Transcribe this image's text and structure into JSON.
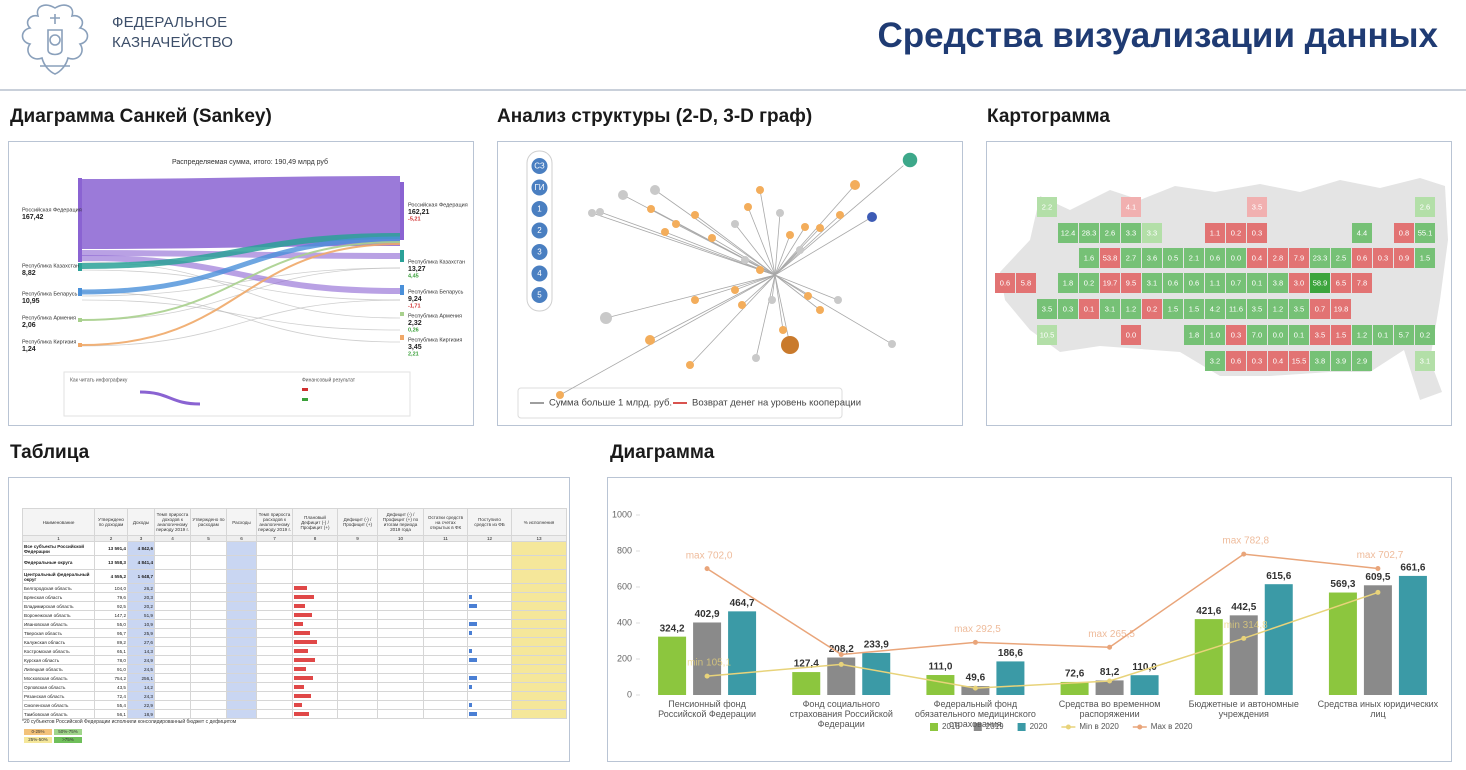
{
  "header": {
    "org_line1": "ФЕДЕРАЛЬНОЕ",
    "org_line2": "КАЗНАЧЕЙСТВО",
    "title": "Средства визуализации данных"
  },
  "sections": {
    "sankey": "Диаграмма Санкей (Sankey)",
    "graph": "Анализ структуры (2-D, 3-D граф)",
    "cartogram": "Картограмма",
    "table": "Таблица",
    "diagram": "Диаграмма"
  },
  "sankey": {
    "caption": "Распределяемая сумма, итого: 190,49 млрд руб",
    "how_to_read": "Как читать инфографику",
    "result": "Финансовый результат",
    "left": [
      {
        "name": "Российская Федерация",
        "value": "167,42"
      },
      {
        "name": "Республика Казахстан",
        "value": "8,82"
      },
      {
        "name": "Республика Беларусь",
        "value": "10,95"
      },
      {
        "name": "Республика Армения",
        "value": "2,06"
      },
      {
        "name": "Республика Киргизия",
        "value": "1,24"
      }
    ],
    "right": [
      {
        "name": "Российская Федерация",
        "value": "162,21",
        "delta": "-5,21"
      },
      {
        "name": "Республика Казахстан",
        "value": "13,27",
        "delta": "4,45"
      },
      {
        "name": "Республика Беларусь",
        "value": "9,24",
        "delta": "-1,71"
      },
      {
        "name": "Республика Армения",
        "value": "2,32",
        "delta": "0,26"
      },
      {
        "name": "Республика Киргизия",
        "value": "3,45",
        "delta": "2,21"
      }
    ]
  },
  "graph": {
    "filters": [
      "СЗ",
      "ГИ",
      "1",
      "2",
      "3",
      "4",
      "5"
    ],
    "legend": [
      {
        "name": "Сумма больше 1 млрд. руб.",
        "color": "#9e9e9e"
      },
      {
        "name": "Возврат денег на уровень кооперации",
        "color": "#d9534f"
      }
    ]
  },
  "cartogram": {
    "rows": [
      [
        null,
        null,
        [
          "2.2",
          "#b3dfa8"
        ],
        null,
        null,
        null,
        [
          "4.1",
          "#f1b0b0"
        ],
        null,
        null,
        null,
        null,
        null,
        [
          "3.5",
          "#f1b0b0"
        ],
        null,
        null,
        null,
        null,
        null,
        null,
        null,
        [
          "2.6",
          "#b3dfa8"
        ]
      ],
      [
        null,
        null,
        null,
        [
          "12.4",
          "#76c176"
        ],
        [
          "28.3",
          "#76c176"
        ],
        [
          "2.6",
          "#76c176"
        ],
        [
          "3.3",
          "#76c176"
        ],
        [
          "3.3",
          "#b3dfa8"
        ],
        null,
        null,
        [
          "1.1",
          "#e27373"
        ],
        [
          "0.2",
          "#e27373"
        ],
        [
          "0.3",
          "#e27373"
        ],
        null,
        null,
        null,
        null,
        [
          "4.4",
          "#76c176"
        ],
        null,
        [
          "0.8",
          "#e27373"
        ],
        [
          "55.1",
          "#76c176"
        ]
      ],
      [
        null,
        null,
        null,
        null,
        [
          "1.6",
          "#76c176"
        ],
        [
          "53.8",
          "#e27373"
        ],
        [
          "2.7",
          "#76c176"
        ],
        [
          "3.6",
          "#76c176"
        ],
        [
          "0.5",
          "#76c176"
        ],
        [
          "2.1",
          "#76c176"
        ],
        [
          "0.6",
          "#76c176"
        ],
        [
          "0.0",
          "#76c176"
        ],
        [
          "0.4",
          "#e27373"
        ],
        [
          "2.8",
          "#e27373"
        ],
        [
          "7.9",
          "#e27373"
        ],
        [
          "23.3",
          "#76c176"
        ],
        [
          "2.5",
          "#76c176"
        ],
        [
          "0.6",
          "#e27373"
        ],
        [
          "0.3",
          "#e27373"
        ],
        [
          "0.9",
          "#e27373"
        ],
        [
          "1.5",
          "#76c176"
        ]
      ],
      [
        [
          "0.6",
          "#e27373"
        ],
        [
          "5.8",
          "#e27373"
        ],
        null,
        [
          "1.8",
          "#76c176"
        ],
        [
          "0.2",
          "#76c176"
        ],
        [
          "19.7",
          "#e27373"
        ],
        [
          "9.5",
          "#e27373"
        ],
        [
          "3.1",
          "#76c176"
        ],
        [
          "0.6",
          "#76c176"
        ],
        [
          "0.6",
          "#76c176"
        ],
        [
          "1.1",
          "#76c176"
        ],
        [
          "0.7",
          "#76c176"
        ],
        [
          "0.1",
          "#76c176"
        ],
        [
          "3.8",
          "#76c176"
        ],
        [
          "3.0",
          "#e27373"
        ],
        [
          "58.9",
          "#3da53d"
        ],
        [
          "6.5",
          "#e27373"
        ],
        [
          "7.8",
          "#e27373"
        ],
        null,
        null,
        null
      ],
      [
        null,
        null,
        [
          "3.5",
          "#76c176"
        ],
        [
          "0.3",
          "#76c176"
        ],
        [
          "0.1",
          "#e27373"
        ],
        [
          "3.1",
          "#76c176"
        ],
        [
          "1.2",
          "#76c176"
        ],
        [
          "0.2",
          "#e27373"
        ],
        [
          "1.5",
          "#76c176"
        ],
        [
          "1.5",
          "#76c176"
        ],
        [
          "4.2",
          "#76c176"
        ],
        [
          "11.6",
          "#76c176"
        ],
        [
          "3.5",
          "#76c176"
        ],
        [
          "1.2",
          "#76c176"
        ],
        [
          "3.5",
          "#76c176"
        ],
        [
          "0.7",
          "#e27373"
        ],
        [
          "19.8",
          "#e27373"
        ],
        null,
        null,
        null,
        null
      ],
      [
        null,
        null,
        [
          "10.5",
          "#b3dfa8"
        ],
        null,
        null,
        null,
        [
          "0.0",
          "#e27373"
        ],
        null,
        null,
        [
          "1.8",
          "#76c176"
        ],
        [
          "1.0",
          "#76c176"
        ],
        [
          "0.3",
          "#e27373"
        ],
        [
          "7.0",
          "#76c176"
        ],
        [
          "0.0",
          "#76c176"
        ],
        [
          "0.1",
          "#76c176"
        ],
        [
          "3.5",
          "#e27373"
        ],
        [
          "1.5",
          "#e27373"
        ],
        [
          "1.2",
          "#76c176"
        ],
        [
          "0.1",
          "#76c176"
        ],
        [
          "5.7",
          "#76c176"
        ],
        [
          "0.2",
          "#76c176"
        ]
      ],
      [
        null,
        null,
        null,
        null,
        null,
        null,
        null,
        null,
        null,
        null,
        [
          "3.2",
          "#76c176"
        ],
        [
          "0.6",
          "#e27373"
        ],
        [
          "0.3",
          "#e27373"
        ],
        [
          "0.4",
          "#e27373"
        ],
        [
          "15.5",
          "#e27373"
        ],
        [
          "3.8",
          "#76c176"
        ],
        [
          "3.9",
          "#76c176"
        ],
        [
          "2.9",
          "#76c176"
        ],
        null,
        null,
        [
          "3.1",
          "#b3dfa8"
        ]
      ]
    ]
  },
  "table": {
    "columns": [
      "Наименование",
      "Утверждено по доходам",
      "Доходы",
      "Темп прироста доходов к аналогичному периоду 2019 г.",
      "Утверждено по расходам",
      "Расходы",
      "Темп прироста расходов к аналогичному периоду 2019 г.",
      "Плановый Дефицит (-) / Профицит (+)",
      "Дефицит (-) / Профицит (+)",
      "Дефицит (-) / Профицит (+) по итогам периода 2019 года",
      "Остатки средств на счетах открытых в ФК",
      "Поступило средств из ФБ",
      "% исполнения"
    ],
    "number_row": [
      "1",
      "2",
      "3",
      "4",
      "5",
      "6",
      "7",
      "8",
      "9",
      "10",
      "11",
      "12",
      "13"
    ],
    "rows": [
      [
        "Все субъекты Российской Федерации",
        "13 591,4",
        "4 842,6"
      ],
      [
        "Федеральные округа",
        "13 558,3",
        "4 841,4"
      ],
      [
        "Центральный федеральный округ",
        "4 555,2",
        "1 648,7"
      ],
      [
        "Белгородская область",
        "104,0",
        "26,2"
      ],
      [
        "Брянская область",
        "79,6",
        "20,3"
      ],
      [
        "Владимирская область",
        "92,5",
        "20,2"
      ],
      [
        "Воронежская область",
        "147,2",
        "51,9"
      ],
      [
        "Ивановская область",
        "55,0",
        "10,9"
      ],
      [
        "Тверская область",
        "95,7",
        "25,9"
      ],
      [
        "Калужская область",
        "89,2",
        "27,6"
      ],
      [
        "Костромская область",
        "65,1",
        "14,3"
      ],
      [
        "Курская область",
        "78,0",
        "24,9"
      ],
      [
        "Липецкая область",
        "91,0",
        "24,5"
      ],
      [
        "Московская область",
        "754,2",
        "256,1"
      ],
      [
        "Орловская область",
        "43,5",
        "14,2"
      ],
      [
        "Рязанская область",
        "72,4",
        "24,3"
      ],
      [
        "Смоленская область",
        "55,4",
        "22,9"
      ],
      [
        "Тамбовская область",
        "56,1",
        "18,9"
      ]
    ],
    "footnote": "*20 субъектов Российской Федерации исполнили консолидированный бюджет с дефицитом",
    "scale": [
      "0-25%",
      "50%-75%",
      "25%-50%",
      ">75%"
    ]
  },
  "chart_data": {
    "type": "bar",
    "categories": [
      "Пенсионный фонд Российской Федерации",
      "Фонд социального страхования Российской Федерации",
      "Федеральный фонд обязательного медицинского страхования",
      "Средства во временном распоряжении",
      "Бюджетные и автономные учреждения",
      "Средства иных юридических лиц"
    ],
    "ylim": [
      0,
      1000
    ],
    "yticks": [
      0,
      200,
      400,
      600,
      800,
      1000
    ],
    "grid": false,
    "legend": "bottom",
    "series": [
      {
        "name": "2018",
        "kind": "bar",
        "color": "#8cc63e",
        "values": [
          324.2,
          127.4,
          111.0,
          72.6,
          421.6,
          569.3
        ],
        "value_labels": [
          "324,2",
          "127,4",
          "111,0",
          "72,6",
          "421,6",
          "569,3"
        ]
      },
      {
        "name": "2019",
        "kind": "bar",
        "color": "#8a8a8a",
        "values": [
          402.9,
          208.2,
          49.6,
          81.2,
          442.5,
          609.5
        ],
        "value_labels": [
          "402,9",
          "208,2",
          "49,6",
          "81,2",
          "442,5",
          "609,5"
        ]
      },
      {
        "name": "2020",
        "kind": "bar",
        "color": "#3b9aa6",
        "values": [
          464.7,
          233.9,
          186.6,
          110.0,
          615.6,
          661.6
        ],
        "value_labels": [
          "464,7",
          "233,9",
          "186,6",
          "110,0",
          "615,6",
          "661,6"
        ]
      },
      {
        "name": "Min в 2020",
        "kind": "line",
        "color": "#e8d37a",
        "values": [
          105.1,
          170,
          38,
          78,
          314.8,
          570
        ],
        "value_labels": [
          "min 105,1",
          null,
          null,
          null,
          "min 314,8",
          null
        ]
      },
      {
        "name": "Max в 2020",
        "kind": "line",
        "color": "#e9a57a",
        "values": [
          702.0,
          225,
          292.5,
          265.5,
          782.8,
          702.7
        ],
        "value_labels": [
          "max 702,0",
          null,
          "max 292,5",
          "max 265,5",
          "max 782,8",
          "max 702,7"
        ]
      }
    ]
  }
}
